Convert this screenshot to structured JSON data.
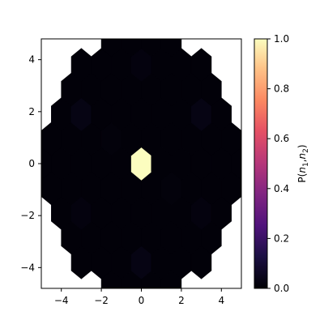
{
  "chart_data": {
    "type": "heatmap",
    "subtype": "hexbin",
    "colormap": "magma",
    "xlim": [
      -5,
      5
    ],
    "ylim": [
      -4.8,
      4.8
    ],
    "x_ticks": [
      -4,
      -2,
      0,
      2,
      4
    ],
    "x_tick_labels": [
      "−4",
      "−2",
      "0",
      "2",
      "4"
    ],
    "y_ticks": [
      -4,
      -2,
      0,
      2,
      4
    ],
    "y_tick_labels": [
      "−4",
      "−2",
      "0",
      "2",
      "4"
    ],
    "xlabel": "",
    "ylabel": "",
    "grid": false,
    "colorbar": {
      "label_prefix": "P(",
      "label_var1": "n",
      "label_sub1": "1",
      "label_sep": ",",
      "label_var2": "n",
      "label_sub2": "2",
      "label_suffix": ")",
      "range": [
        0,
        1
      ],
      "ticks": [
        0.0,
        0.2,
        0.4,
        0.6,
        0.8,
        1.0
      ],
      "tick_labels": [
        "0.0",
        "0.2",
        "0.4",
        "0.6",
        "0.8",
        "1.0"
      ]
    },
    "hex_grid": {
      "hex_width": 1.0,
      "row_spacing": 0.95,
      "region_radius": 5.0,
      "default_value": 0.01
    },
    "cells": [
      {
        "x": 0,
        "y": 0,
        "value": 1.0
      },
      {
        "x": -3,
        "y": 1.9,
        "value": 0.03
      },
      {
        "x": 3,
        "y": 1.9,
        "value": 0.03
      },
      {
        "x": 0,
        "y": -3.8,
        "value": 0.03
      },
      {
        "x": -3,
        "y": -1.9,
        "value": 0.02
      },
      {
        "x": 3,
        "y": -1.9,
        "value": 0.02
      },
      {
        "x": 0,
        "y": 3.8,
        "value": 0.02
      },
      {
        "x": -1.5,
        "y": 0.95,
        "value": 0.015
      },
      {
        "x": 1.5,
        "y": -0.95,
        "value": 0.015
      }
    ]
  }
}
